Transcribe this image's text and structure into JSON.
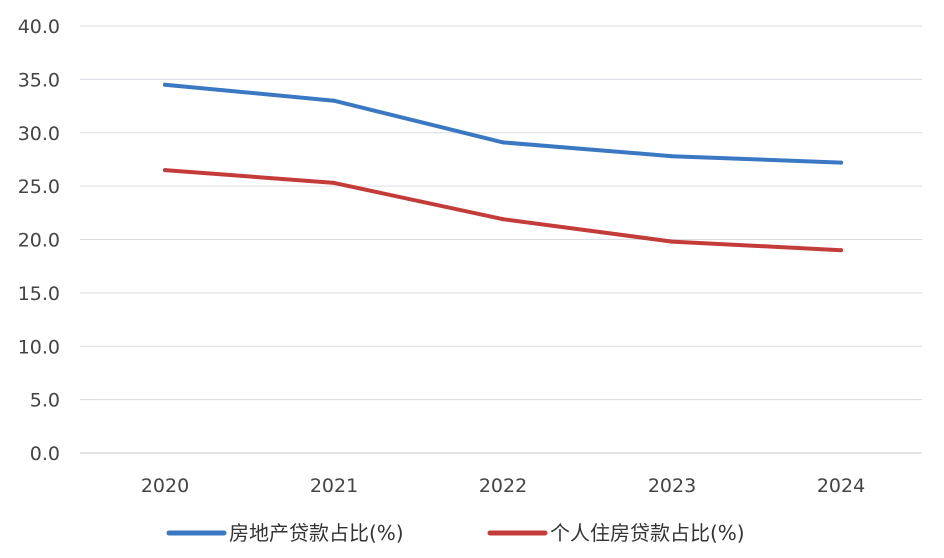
{
  "chart_data": {
    "type": "line",
    "categories": [
      "2020",
      "2021",
      "2022",
      "2023",
      "2024"
    ],
    "series": [
      {
        "name": "房地产贷款占比(%)",
        "values": [
          34.5,
          33.0,
          29.1,
          27.8,
          27.2
        ],
        "color": "#3a78c3"
      },
      {
        "name": "个人住房贷款占比(%)",
        "values": [
          26.5,
          25.3,
          21.9,
          19.8,
          19.0
        ],
        "color": "#c43c39"
      }
    ],
    "y_ticks": [
      "0.0",
      "5.0",
      "10.0",
      "15.0",
      "20.0",
      "25.0",
      "30.0",
      "35.0",
      "40.0"
    ],
    "ylim": [
      0,
      40
    ],
    "grid": true,
    "legend_position": "bottom",
    "title": "",
    "xlabel": "",
    "ylabel": ""
  }
}
